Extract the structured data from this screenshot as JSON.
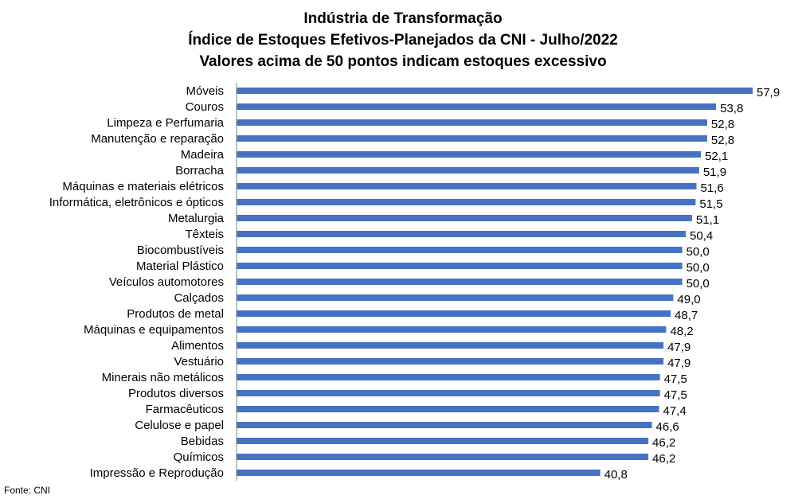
{
  "chart_data": {
    "type": "bar",
    "orientation": "horizontal",
    "title": [
      "Indústria de Transformação",
      "Índice de Estoques Efetivos-Planejados da CNI - Julho/2022",
      "Valores acima de 50 pontos indicam estoques excessivo"
    ],
    "categories": [
      "Móveis",
      "Couros",
      "Limpeza e Perfumaria",
      "Manutenção e reparação",
      "Madeira",
      "Borracha",
      "Máquinas e materiais elétricos",
      "Informática, eletrônicos e ópticos",
      "Metalurgia",
      "Têxteis",
      "Biocombustíveis",
      "Material Plástico",
      "Veículos automotores",
      "Calçados",
      "Produtos de metal",
      "Máquinas e equipamentos",
      "Alimentos",
      "Vestuário",
      "Minerais não metálicos",
      "Produtos diversos",
      "Farmacêuticos",
      "Celulose e papel",
      "Bebidas",
      "Químicos",
      "Impressão e Reprodução"
    ],
    "values": [
      57.9,
      53.8,
      52.8,
      52.8,
      52.1,
      51.9,
      51.6,
      51.5,
      51.1,
      50.4,
      50.0,
      50.0,
      50.0,
      49.0,
      48.7,
      48.2,
      47.9,
      47.9,
      47.5,
      47.5,
      47.4,
      46.6,
      46.2,
      46.2,
      40.8
    ],
    "value_labels": [
      "57,9",
      "53,8",
      "52,8",
      "52,8",
      "52,1",
      "51,9",
      "51,6",
      "51,5",
      "51,1",
      "50,4",
      "50,0",
      "50,0",
      "50,0",
      "49,0",
      "48,7",
      "48,2",
      "47,9",
      "47,9",
      "47,5",
      "47,5",
      "47,4",
      "46,6",
      "46,2",
      "46,2",
      "40,8"
    ],
    "bar_color": "#4472C4",
    "grid": false,
    "legend": "none"
  },
  "source": "Fonte: CNI"
}
